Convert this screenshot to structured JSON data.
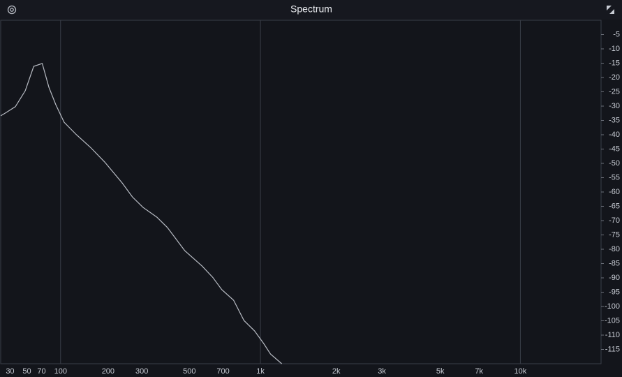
{
  "chart_data": {
    "type": "line",
    "title": "Spectrum",
    "x": [
      20,
      25,
      36,
      48,
      59,
      71,
      81,
      92,
      106,
      129,
      158,
      191,
      238,
      269,
      304,
      355,
      397,
      477,
      569,
      632,
      691,
      775,
      856,
      946,
      1030,
      1099,
      1219
    ],
    "values": [
      -33.4,
      -32.4,
      -30.2,
      -24.6,
      -16.1,
      -15.1,
      -23.4,
      -29.5,
      -35.6,
      -40,
      -44.4,
      -49.5,
      -56.8,
      -61.7,
      -65.4,
      -68.8,
      -72.4,
      -80.5,
      -85.9,
      -89.8,
      -94.1,
      -97.8,
      -104.9,
      -108.5,
      -112.9,
      -116.6,
      -120
    ],
    "color": "#b8bcc4",
    "xscale": "log",
    "xscale_offset": 100,
    "xlim": [
      20,
      20000
    ],
    "xticks": [
      30,
      50,
      70,
      100,
      200,
      300,
      500,
      700,
      {
        "value": 1000,
        "label": "1k"
      },
      {
        "value": 2000,
        "label": "2k"
      },
      {
        "value": 3000,
        "label": "3k"
      },
      {
        "value": 5000,
        "label": "5k"
      },
      {
        "value": 7000,
        "label": "7k"
      },
      {
        "value": 10000,
        "label": "10k"
      }
    ],
    "xgrid": [
      100,
      1000,
      10000
    ],
    "ylim": [
      -120,
      0
    ],
    "yticks": [
      -5,
      -10,
      -15,
      -20,
      -25,
      -30,
      -35,
      -40,
      -45,
      -50,
      -55,
      -60,
      -65,
      -70,
      -75,
      -80,
      -85,
      -90,
      -95,
      -100,
      -105,
      -110,
      -115
    ]
  }
}
